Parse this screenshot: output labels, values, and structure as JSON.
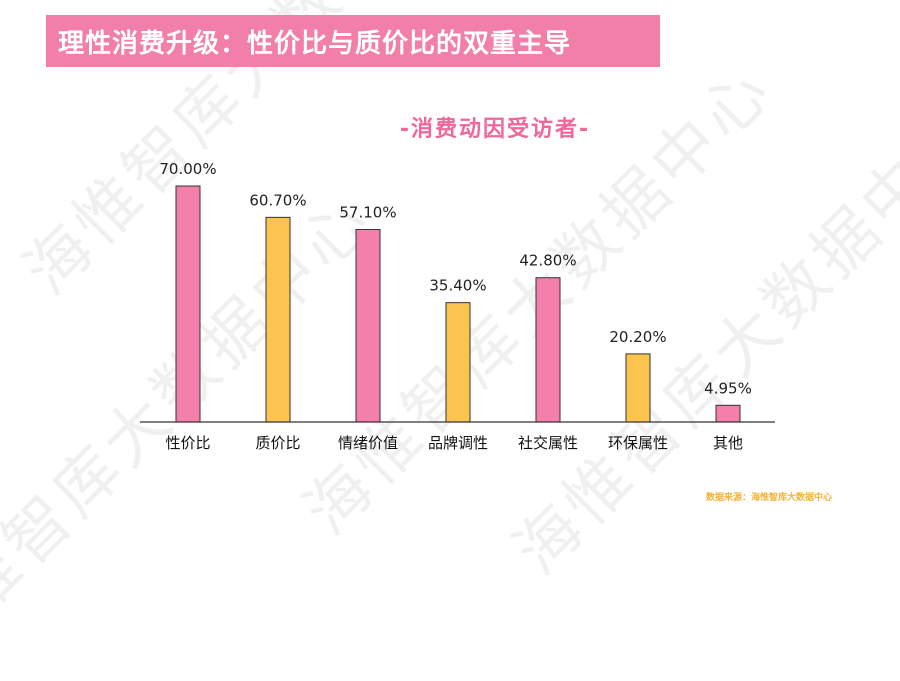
{
  "header": {
    "title": "理性消费升级：性价比与质价比的双重主导"
  },
  "chart_data": {
    "type": "bar",
    "title": "-消费动因受访者-",
    "categories": [
      "性价比",
      "质价比",
      "情绪价值",
      "品牌调性",
      "社交属性",
      "环保属性",
      "其他"
    ],
    "values": [
      70.0,
      60.7,
      57.1,
      35.4,
      42.8,
      20.2,
      4.95
    ],
    "value_labels": [
      "70.00%",
      "60.70%",
      "57.10%",
      "35.40%",
      "42.80%",
      "20.20%",
      "4.95%"
    ],
    "bar_colors": [
      "#f57fab",
      "#fbc44e",
      "#f57fab",
      "#fbc44e",
      "#f57fab",
      "#fbc44e",
      "#f57fab"
    ],
    "bar_stroke": "#333333",
    "ylim": [
      0,
      70
    ],
    "grid": false,
    "legend": "none"
  },
  "source": {
    "text": "数据来源：海惟智库大数据中心"
  },
  "watermark": {
    "text": "海惟智库大数据中心"
  }
}
